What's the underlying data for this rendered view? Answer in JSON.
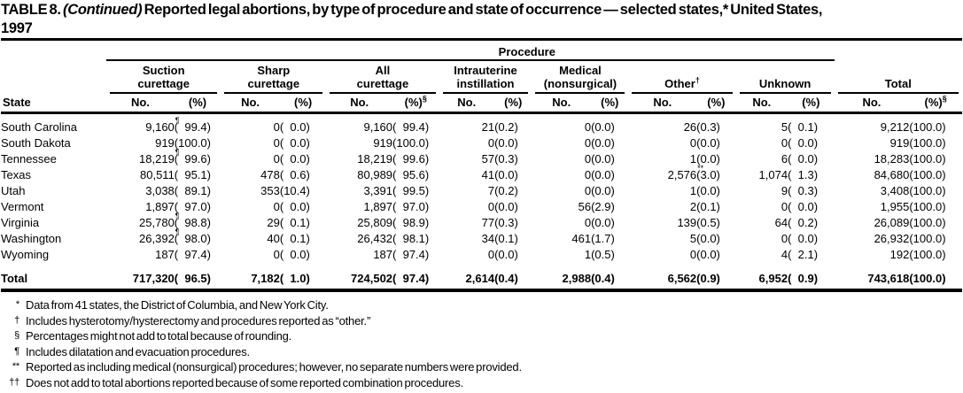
{
  "title": {
    "label": "TABLE 8.",
    "continued": "(Continued)",
    "rest": "Reported legal abortions, by type of procedure and state of occurrence — selected states,* United States,",
    "line2": "1997"
  },
  "header": {
    "procedure_label": "Procedure",
    "state_label": "State",
    "groups": [
      {
        "name_lines": [
          "Suction",
          "curettage"
        ],
        "no": "No.",
        "pct": "(%)"
      },
      {
        "name_lines": [
          "Sharp",
          "curettage"
        ],
        "no": "No.",
        "pct": "(%)"
      },
      {
        "name_lines": [
          "All",
          "curettage"
        ],
        "no": "No.",
        "pct": "(%)",
        "pct_sup": "§"
      },
      {
        "name_lines": [
          "Intrauterine",
          "instillation"
        ],
        "no": "No.",
        "pct": "(%)"
      },
      {
        "name_lines": [
          "Medical",
          "(nonsurgical)"
        ],
        "no": "No.",
        "pct": "(%)"
      },
      {
        "name_lines": [
          "Other"
        ],
        "sup": "†",
        "no": "No.",
        "pct": "(%)"
      },
      {
        "name_lines": [
          "Unknown"
        ],
        "no": "No.",
        "pct": "(%)"
      },
      {
        "name_lines": [
          "Total"
        ],
        "no": "No.",
        "pct": "(%)",
        "pct_sup": "§"
      }
    ]
  },
  "rows": [
    {
      "state": "South Carolina",
      "cells": [
        {
          "no": "9,160",
          "sup": "¶",
          "pct": "(  99.4)"
        },
        {
          "no": "0",
          "pct": "(  0.0)"
        },
        {
          "no": "9,160",
          "pct": "(  99.4)"
        },
        {
          "no": "21",
          "pct": "(0.2)"
        },
        {
          "no": "0",
          "pct": "(0.0)"
        },
        {
          "no": "26",
          "pct": "(0.3)"
        },
        {
          "no": "5",
          "pct": "(  0.1)"
        },
        {
          "no": "9,212",
          "pct": "(100.0)"
        }
      ]
    },
    {
      "state": "South Dakota",
      "cells": [
        {
          "no": "919",
          "pct": "(100.0)"
        },
        {
          "no": "0",
          "pct": "(  0.0)"
        },
        {
          "no": "919",
          "pct": "(100.0)"
        },
        {
          "no": "0",
          "pct": "(0.0)"
        },
        {
          "no": "0",
          "pct": "(0.0)"
        },
        {
          "no": "0",
          "pct": "(0.0)"
        },
        {
          "no": "0",
          "pct": "(  0.0)"
        },
        {
          "no": "919",
          "pct": "(100.0)"
        }
      ]
    },
    {
      "state": "Tennessee",
      "cells": [
        {
          "no": "18,219",
          "sup": "¶",
          "pct": "(  99.6)"
        },
        {
          "no": "0",
          "pct": "(  0.0)"
        },
        {
          "no": "18,219",
          "pct": "(  99.6)"
        },
        {
          "no": "57",
          "pct": "(0.3)"
        },
        {
          "no": "0",
          "pct": "(0.0)"
        },
        {
          "no": "1",
          "pct": "(0.0)"
        },
        {
          "no": "6",
          "pct": "(  0.0)"
        },
        {
          "no": "18,283",
          "pct": "(100.0)"
        }
      ]
    },
    {
      "state": "Texas",
      "cells": [
        {
          "no": "80,511",
          "pct": "(  95.1)"
        },
        {
          "no": "478",
          "pct": "(  0.6)"
        },
        {
          "no": "80,989",
          "pct": "(  95.6)"
        },
        {
          "no": "41",
          "pct": "(0.0)"
        },
        {
          "no": "0",
          "pct": "(0.0)"
        },
        {
          "no": "2,576",
          "sup": "**",
          "pct": "(3.0)"
        },
        {
          "no": "1,074",
          "pct": "(  1.3)"
        },
        {
          "no": "84,680",
          "pct": "(100.0)"
        }
      ]
    },
    {
      "state": "Utah",
      "cells": [
        {
          "no": "3,038",
          "pct": "(  89.1)"
        },
        {
          "no": "353",
          "pct": "(10.4)"
        },
        {
          "no": "3,391",
          "pct": "(  99.5)"
        },
        {
          "no": "7",
          "pct": "(0.2)"
        },
        {
          "no": "0",
          "pct": "(0.0)"
        },
        {
          "no": "1",
          "pct": "(0.0)"
        },
        {
          "no": "9",
          "pct": "(  0.3)"
        },
        {
          "no": "3,408",
          "pct": "(100.0)"
        }
      ]
    },
    {
      "state": "Vermont",
      "cells": [
        {
          "no": "1,897",
          "pct": "(  97.0)"
        },
        {
          "no": "0",
          "pct": "(  0.0)"
        },
        {
          "no": "1,897",
          "pct": "(  97.0)"
        },
        {
          "no": "0",
          "pct": "(0.0)"
        },
        {
          "no": "56",
          "pct": "(2.9)"
        },
        {
          "no": "2",
          "pct": "(0.1)"
        },
        {
          "no": "0",
          "pct": "(  0.0)"
        },
        {
          "no": "1,955",
          "pct": "(100.0)"
        }
      ]
    },
    {
      "state": "Virginia",
      "cells": [
        {
          "no": "25,780",
          "sup": "¶",
          "pct": "(  98.8)"
        },
        {
          "no": "29",
          "pct": "(  0.1)"
        },
        {
          "no": "25,809",
          "pct": "(  98.9)"
        },
        {
          "no": "77",
          "pct": "(0.3)"
        },
        {
          "no": "0",
          "pct": "(0.0)"
        },
        {
          "no": "139",
          "pct": "(0.5)"
        },
        {
          "no": "64",
          "pct": "(  0.2)"
        },
        {
          "no": "26,089",
          "pct": "(100.0)"
        }
      ]
    },
    {
      "state": "Washington",
      "cells": [
        {
          "no": "26,392",
          "sup": "¶",
          "pct": "(  98.0)"
        },
        {
          "no": "40",
          "pct": "(  0.1)"
        },
        {
          "no": "26,432",
          "pct": "(  98.1)"
        },
        {
          "no": "34",
          "pct": "(0.1)"
        },
        {
          "no": "461",
          "pct": "(1.7)"
        },
        {
          "no": "5",
          "pct": "(0.0)"
        },
        {
          "no": "0",
          "pct": "(  0.0)"
        },
        {
          "no": "26,932",
          "pct": "(100.0)"
        }
      ]
    },
    {
      "state": "Wyoming",
      "cells": [
        {
          "no": "187",
          "pct": "(  97.4)"
        },
        {
          "no": "0",
          "pct": "(  0.0)"
        },
        {
          "no": "187",
          "pct": "(  97.4)"
        },
        {
          "no": "0",
          "pct": "(0.0)"
        },
        {
          "no": "1",
          "pct": "(0.5)"
        },
        {
          "no": "0",
          "pct": "(0.0)"
        },
        {
          "no": "4",
          "pct": "(  2.1)"
        },
        {
          "no": "192",
          "pct": "(100.0)"
        }
      ]
    }
  ],
  "total_row": {
    "state": "Total",
    "cells": [
      {
        "no": "717,320",
        "pct": "(  96.5)"
      },
      {
        "no": "7,182",
        "pct": "(  1.0)"
      },
      {
        "no": "724,502",
        "pct": "(  97.4)"
      },
      {
        "no": "2,614",
        "pct": "(0.4)"
      },
      {
        "no": "2,988",
        "pct": "(0.4)"
      },
      {
        "no": "6,562",
        "pct": "(0.9)"
      },
      {
        "no": "6,952",
        "pct": "(  0.9)"
      },
      {
        "no": "743,618",
        "pct": "(100.0)"
      }
    ]
  },
  "footnotes": [
    {
      "marker": "*",
      "text": "Data from 41 states, the District of Columbia, and New York City."
    },
    {
      "marker": "†",
      "text": "Includes hysterotomy/hysterectomy and procedures reported as “other.”"
    },
    {
      "marker": "§",
      "text": "Percentages might not add to total because of rounding."
    },
    {
      "marker": "¶",
      "text": "Includes dilatation and evacuation procedures."
    },
    {
      "marker": "**",
      "text": "Reported as including medical (nonsurgical) procedures; however, no separate numbers were provided."
    },
    {
      "marker": "††",
      "text": "Does not add to total abortions reported because of some reported combination procedures."
    }
  ]
}
